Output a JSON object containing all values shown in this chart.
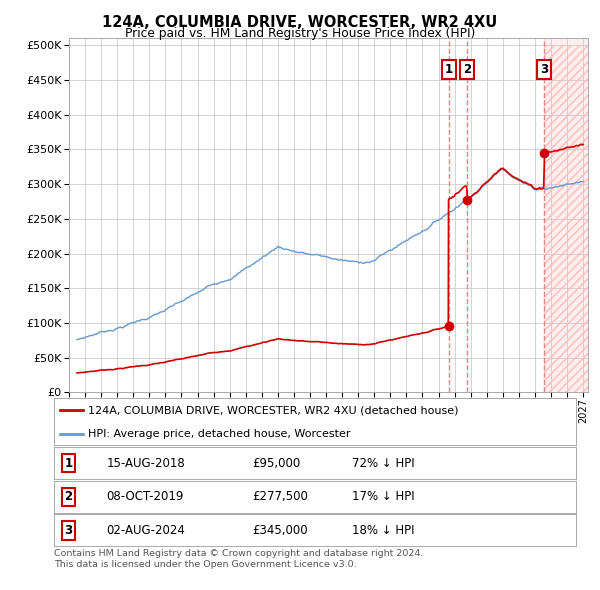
{
  "title": "124A, COLUMBIA DRIVE, WORCESTER, WR2 4XU",
  "subtitle": "Price paid vs. HM Land Registry's House Price Index (HPI)",
  "ylim": [
    0,
    500000
  ],
  "yticks": [
    0,
    50000,
    100000,
    150000,
    200000,
    250000,
    300000,
    350000,
    400000,
    450000,
    500000
  ],
  "xlim_start": 1995.5,
  "xlim_end": 2027.3,
  "sales": [
    {
      "num": 1,
      "date_label": "15-AUG-2018",
      "year": 2018.62,
      "price": 95000,
      "pct": "72% ↓ HPI"
    },
    {
      "num": 2,
      "date_label": "08-OCT-2019",
      "year": 2019.79,
      "price": 277500,
      "pct": "17% ↓ HPI"
    },
    {
      "num": 3,
      "date_label": "02-AUG-2024",
      "year": 2024.59,
      "price": 345000,
      "pct": "18% ↓ HPI"
    }
  ],
  "legend_property_label": "124A, COLUMBIA DRIVE, WORCESTER, WR2 4XU (detached house)",
  "legend_hpi_label": "HPI: Average price, detached house, Worcester",
  "footer_line1": "Contains HM Land Registry data © Crown copyright and database right 2024.",
  "footer_line2": "This data is licensed under the Open Government Licence v3.0.",
  "property_color": "#cc0000",
  "hpi_color": "#6699cc",
  "vline_color": "#dd8888",
  "grid_color": "#cccccc",
  "hatch_region_color": "#ffdddd"
}
